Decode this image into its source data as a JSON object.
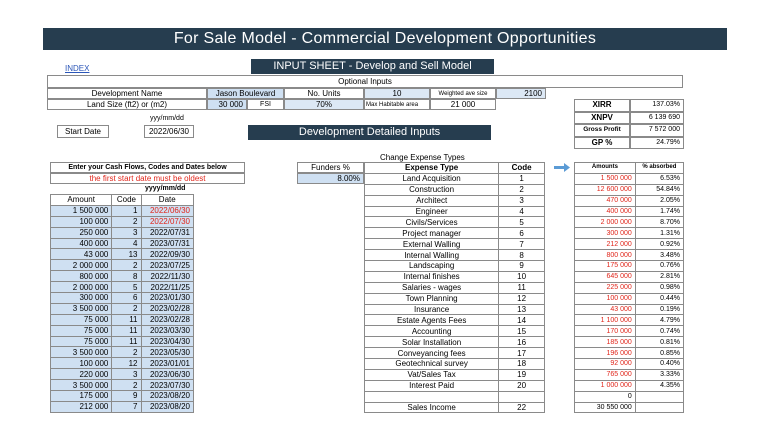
{
  "title": "For Sale Model - Commercial Development Opportunities",
  "index_link": "INDEX",
  "input_sheet_title": "INPUT SHEET - Develop and Sell Model",
  "optional_inputs": "Optional Inputs",
  "development_name_label": "Development Name",
  "development_name_value": "Jason Boulevard",
  "no_units_label": "No. Units",
  "no_units_value": "10",
  "weighted_ave_label": "Weighted ave size",
  "weighted_ave_value": "2100",
  "land_size_label": "Land Size (ft2) or (m2)",
  "land_size_value": "30 000",
  "fsi_label": "FSI",
  "fsi_value": "70%",
  "max_habitable_label": "Max Habitable area",
  "max_habitable_value": "21 000",
  "date_format_1": "yyy/mm/dd",
  "start_date_label": "Start Date",
  "start_date_value": "2022/06/30",
  "detailed_inputs_title": "Development Detailed Inputs",
  "metrics": [
    {
      "label": "XIRR",
      "value": "137.03%"
    },
    {
      "label": "XNPV",
      "value": "6 139 690"
    },
    {
      "label": "Gross Profit",
      "value": "7 572 000"
    },
    {
      "label": "GP %",
      "value": "24.79%"
    }
  ],
  "enter_cashflows_label": "Enter your Cash Flows, Codes and Dates below",
  "oldest_warning": "the first start date must be oldest",
  "date_format_2": "yyyy/mm/dd",
  "cashflow_headers": {
    "amount": "Amount",
    "code": "Code",
    "date": "Date"
  },
  "cashflows": [
    {
      "amount": "1 500 000",
      "code": "1",
      "date": "2022/06/30",
      "red": true
    },
    {
      "amount": "100 000",
      "code": "2",
      "date": "2022/07/30",
      "red": true
    },
    {
      "amount": "250 000",
      "code": "3",
      "date": "2022/07/31"
    },
    {
      "amount": "400 000",
      "code": "4",
      "date": "2023/07/31"
    },
    {
      "amount": "43 000",
      "code": "13",
      "date": "2022/09/30"
    },
    {
      "amount": "2 000 000",
      "code": "2",
      "date": "2023/07/25"
    },
    {
      "amount": "800 000",
      "code": "8",
      "date": "2022/11/30"
    },
    {
      "amount": "2 000 000",
      "code": "5",
      "date": "2022/11/25"
    },
    {
      "amount": "300 000",
      "code": "6",
      "date": "2023/01/30"
    },
    {
      "amount": "3 500 000",
      "code": "2",
      "date": "2023/02/28"
    },
    {
      "amount": "75 000",
      "code": "11",
      "date": "2023/02/28"
    },
    {
      "amount": "75 000",
      "code": "11",
      "date": "2023/03/30"
    },
    {
      "amount": "75 000",
      "code": "11",
      "date": "2023/04/30"
    },
    {
      "amount": "3 500 000",
      "code": "2",
      "date": "2023/05/30"
    },
    {
      "amount": "100 000",
      "code": "12",
      "date": "2023/01/01"
    },
    {
      "amount": "220 000",
      "code": "3",
      "date": "2023/06/30"
    },
    {
      "amount": "3 500 000",
      "code": "2",
      "date": "2023/07/30"
    },
    {
      "amount": "175 000",
      "code": "9",
      "date": "2023/08/20"
    },
    {
      "amount": "212 000",
      "code": "7",
      "date": "2023/08/20"
    }
  ],
  "funders_label": "Funders %",
  "funders_value": "8.00%",
  "change_expense_types": "Change Expense Types",
  "expense_headers": {
    "type": "Expense Type",
    "code": "Code",
    "amounts": "Amounts",
    "absorbed": "% absorbed"
  },
  "expenses": [
    {
      "type": "Land Acquisition",
      "code": "1",
      "amount": "1 500 000",
      "pct": "6.53%"
    },
    {
      "type": "Construction",
      "code": "2",
      "amount": "12 600 000",
      "pct": "54.84%"
    },
    {
      "type": "Architect",
      "code": "3",
      "amount": "470 000",
      "pct": "2.05%"
    },
    {
      "type": "Engineer",
      "code": "4",
      "amount": "400 000",
      "pct": "1.74%"
    },
    {
      "type": "Civils/Services",
      "code": "5",
      "amount": "2 000 000",
      "pct": "8.70%"
    },
    {
      "type": "Project manager",
      "code": "6",
      "amount": "300 000",
      "pct": "1.31%"
    },
    {
      "type": "External Walling",
      "code": "7",
      "amount": "212 000",
      "pct": "0.92%"
    },
    {
      "type": "Internal Walling",
      "code": "8",
      "amount": "800 000",
      "pct": "3.48%"
    },
    {
      "type": "Landscaping",
      "code": "9",
      "amount": "175 000",
      "pct": "0.76%"
    },
    {
      "type": "Internal finishes",
      "code": "10",
      "amount": "645 000",
      "pct": "2.81%"
    },
    {
      "type": "Salaries - wages",
      "code": "11",
      "amount": "225 000",
      "pct": "0.98%"
    },
    {
      "type": "Town Planning",
      "code": "12",
      "amount": "100 000",
      "pct": "0.44%"
    },
    {
      "type": "Insurance",
      "code": "13",
      "amount": "43 000",
      "pct": "0.19%"
    },
    {
      "type": "Estate Agents Fees",
      "code": "14",
      "amount": "1 100 000",
      "pct": "4.79%"
    },
    {
      "type": "Accounting",
      "code": "15",
      "amount": "170 000",
      "pct": "0.74%"
    },
    {
      "type": "Solar Installation",
      "code": "16",
      "amount": "185 000",
      "pct": "0.81%"
    },
    {
      "type": "Conveyancing fees",
      "code": "17",
      "amount": "196 000",
      "pct": "0.85%"
    },
    {
      "type": "Geotechnical survey",
      "code": "18",
      "amount": "92 000",
      "pct": "0.40%"
    },
    {
      "type": "Vat/Sales Tax",
      "code": "19",
      "amount": "765 000",
      "pct": "3.33%"
    },
    {
      "type": "Interest Paid",
      "code": "20",
      "amount": "1 000 000",
      "pct": "4.35%"
    },
    {
      "type": "",
      "code": "",
      "amount": "0",
      "pct": ""
    },
    {
      "type": "Sales Income",
      "code": "22",
      "amount": "30 550 000",
      "pct": ""
    }
  ],
  "colors": {
    "header_dark": "#263d4f",
    "input_blue": "#cfe0f2",
    "red_text": "#e0261b",
    "arrow": "#5b9bd5"
  }
}
